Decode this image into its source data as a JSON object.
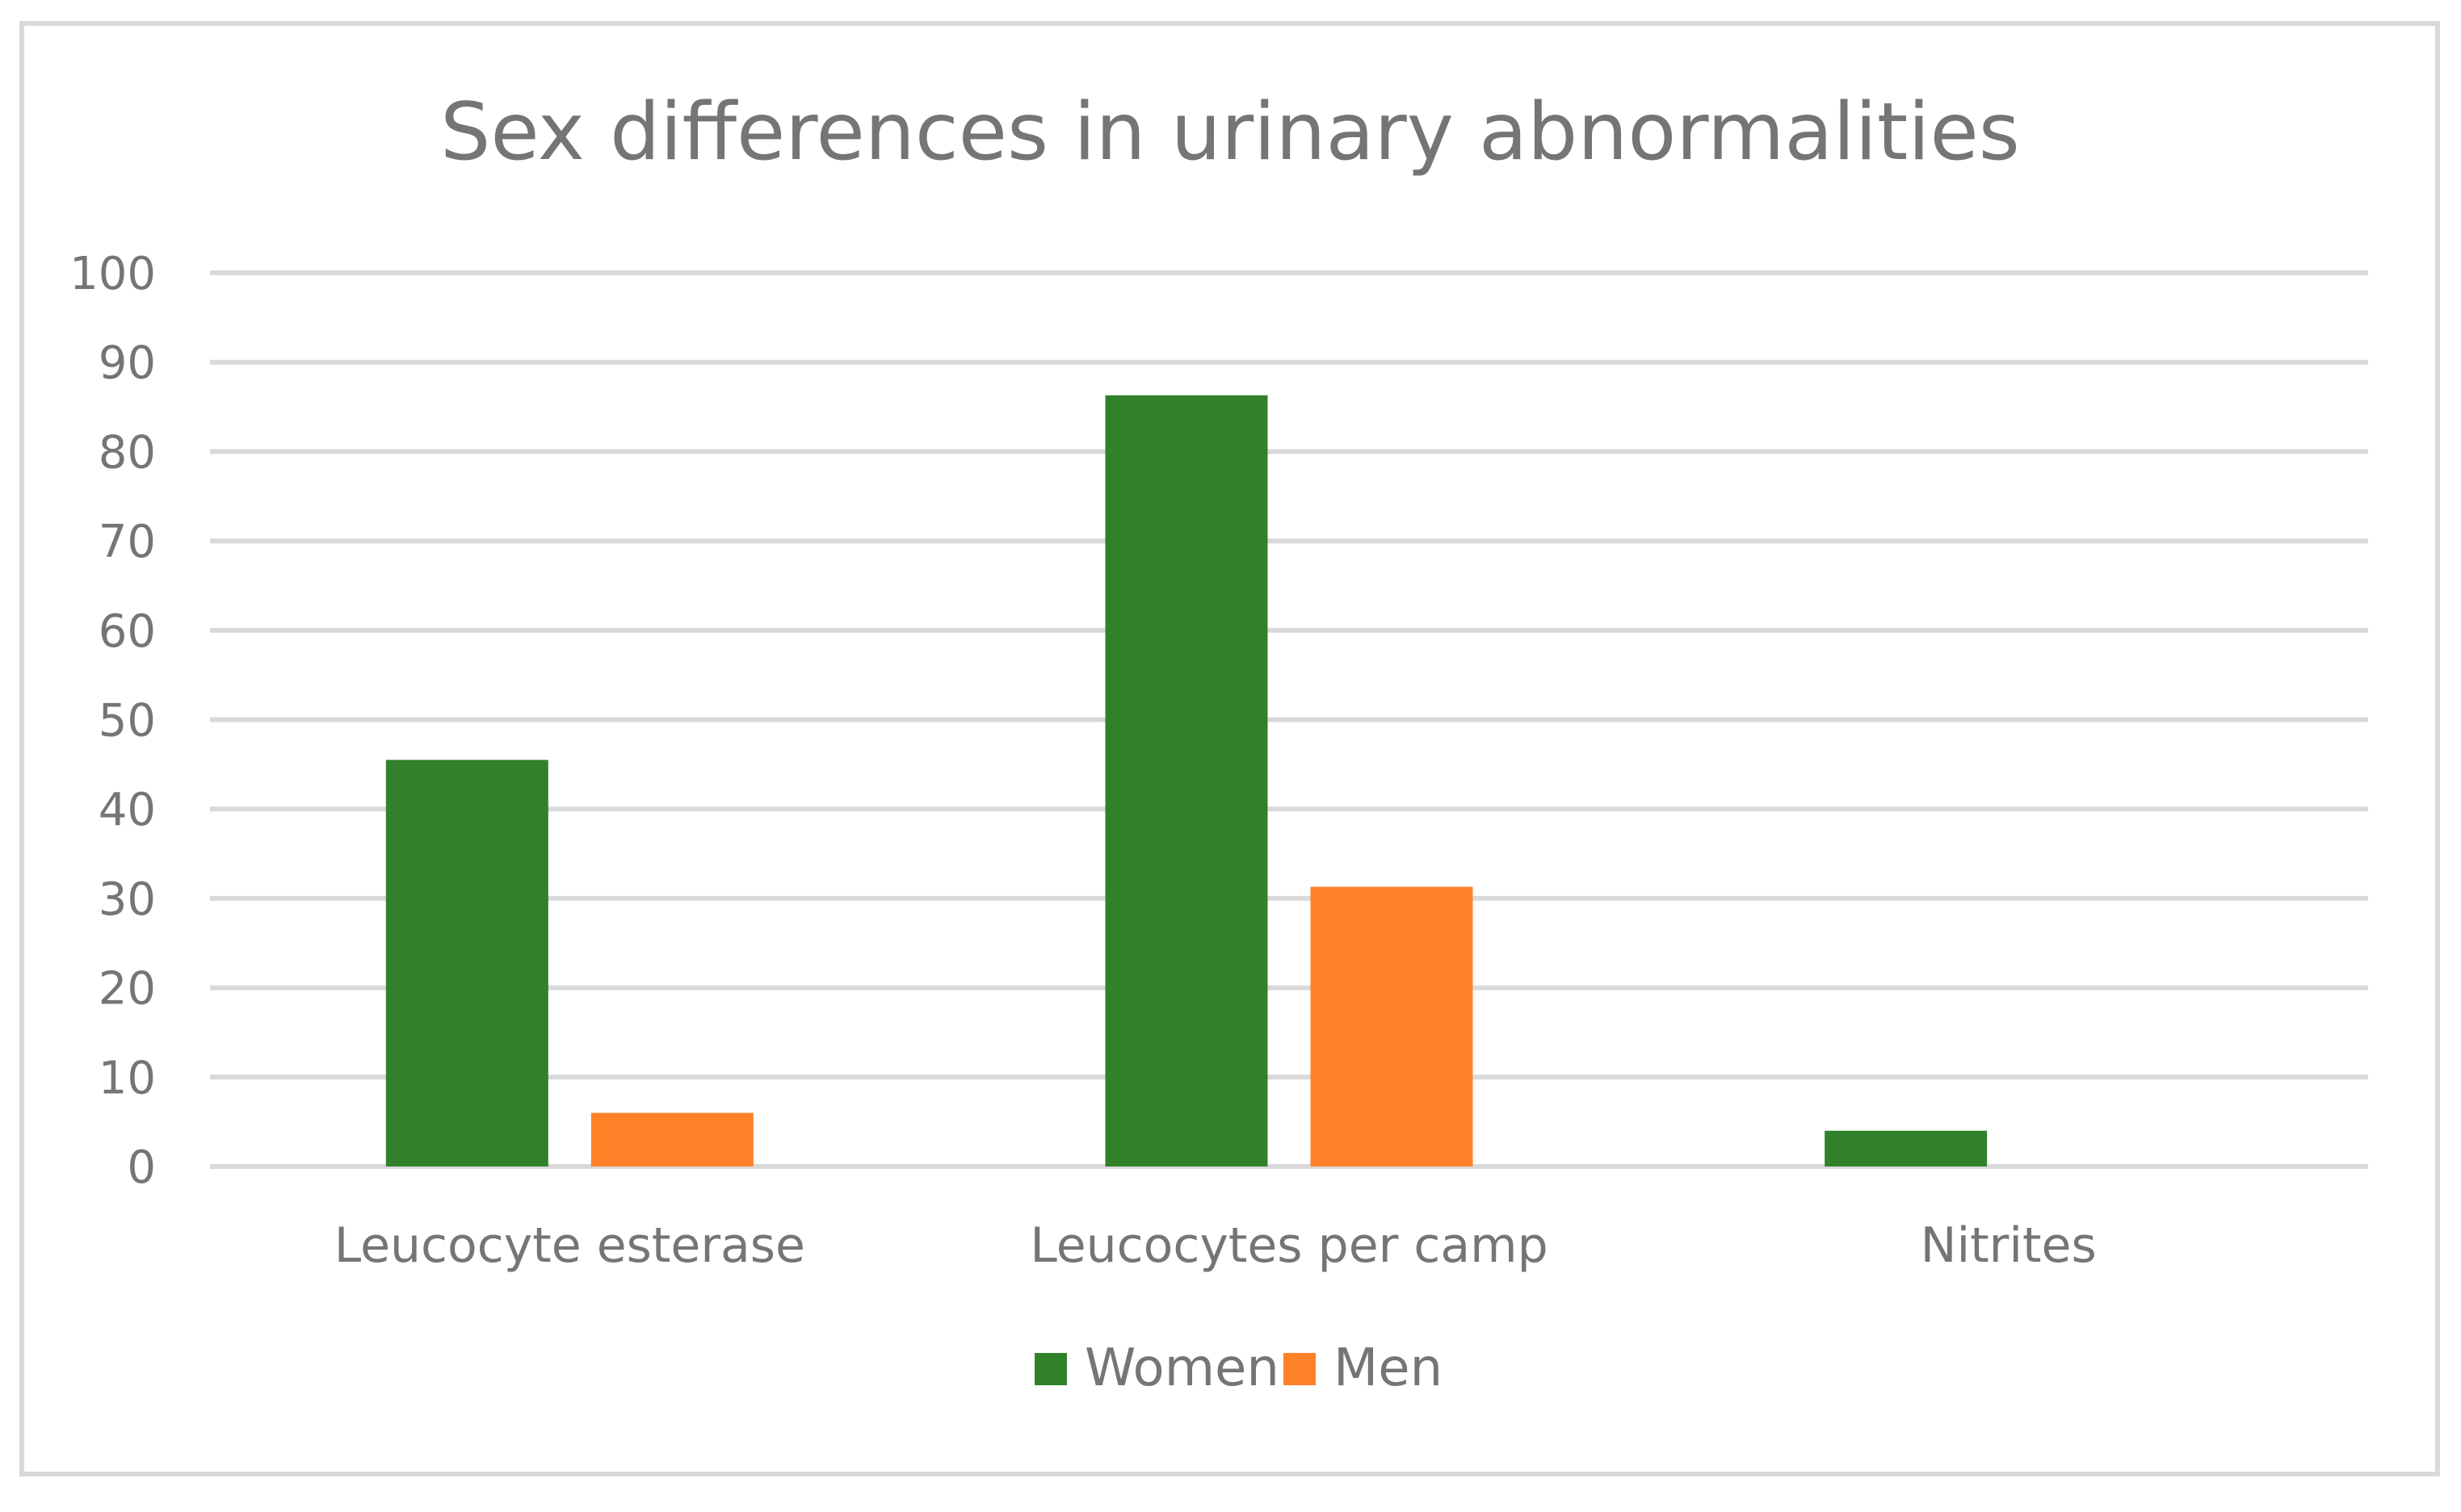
{
  "chart_data": {
    "type": "bar",
    "title": "Sex differences in urinary abnormalities",
    "xlabel": "",
    "ylabel": "",
    "ylim": [
      0,
      100
    ],
    "yticks": [
      0,
      10,
      20,
      30,
      40,
      50,
      60,
      70,
      80,
      90,
      100
    ],
    "grid": true,
    "legend_position": "bottom",
    "categories": [
      "Leucocyte esterase",
      "Leucocytes per camp",
      "Nitrites"
    ],
    "series": [
      {
        "name": "Women",
        "color": "#31812b",
        "values": [
          45.5,
          86.3,
          4.0
        ]
      },
      {
        "name": "Men",
        "color": "#fe8127",
        "values": [
          6.0,
          31.3,
          0
        ]
      }
    ]
  }
}
